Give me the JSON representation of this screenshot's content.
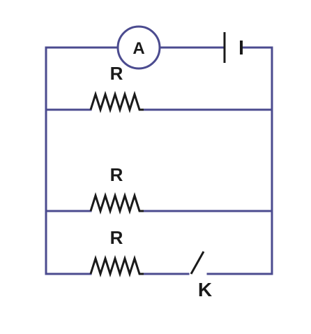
{
  "ammeter": {
    "symbol": "A"
  },
  "resistors": [
    {
      "label": "R"
    },
    {
      "label": "R"
    },
    {
      "label": "R"
    }
  ],
  "switch": {
    "label": "K"
  },
  "colors": {
    "wire": "#4b4b8f",
    "component": "#1a1a1a"
  }
}
